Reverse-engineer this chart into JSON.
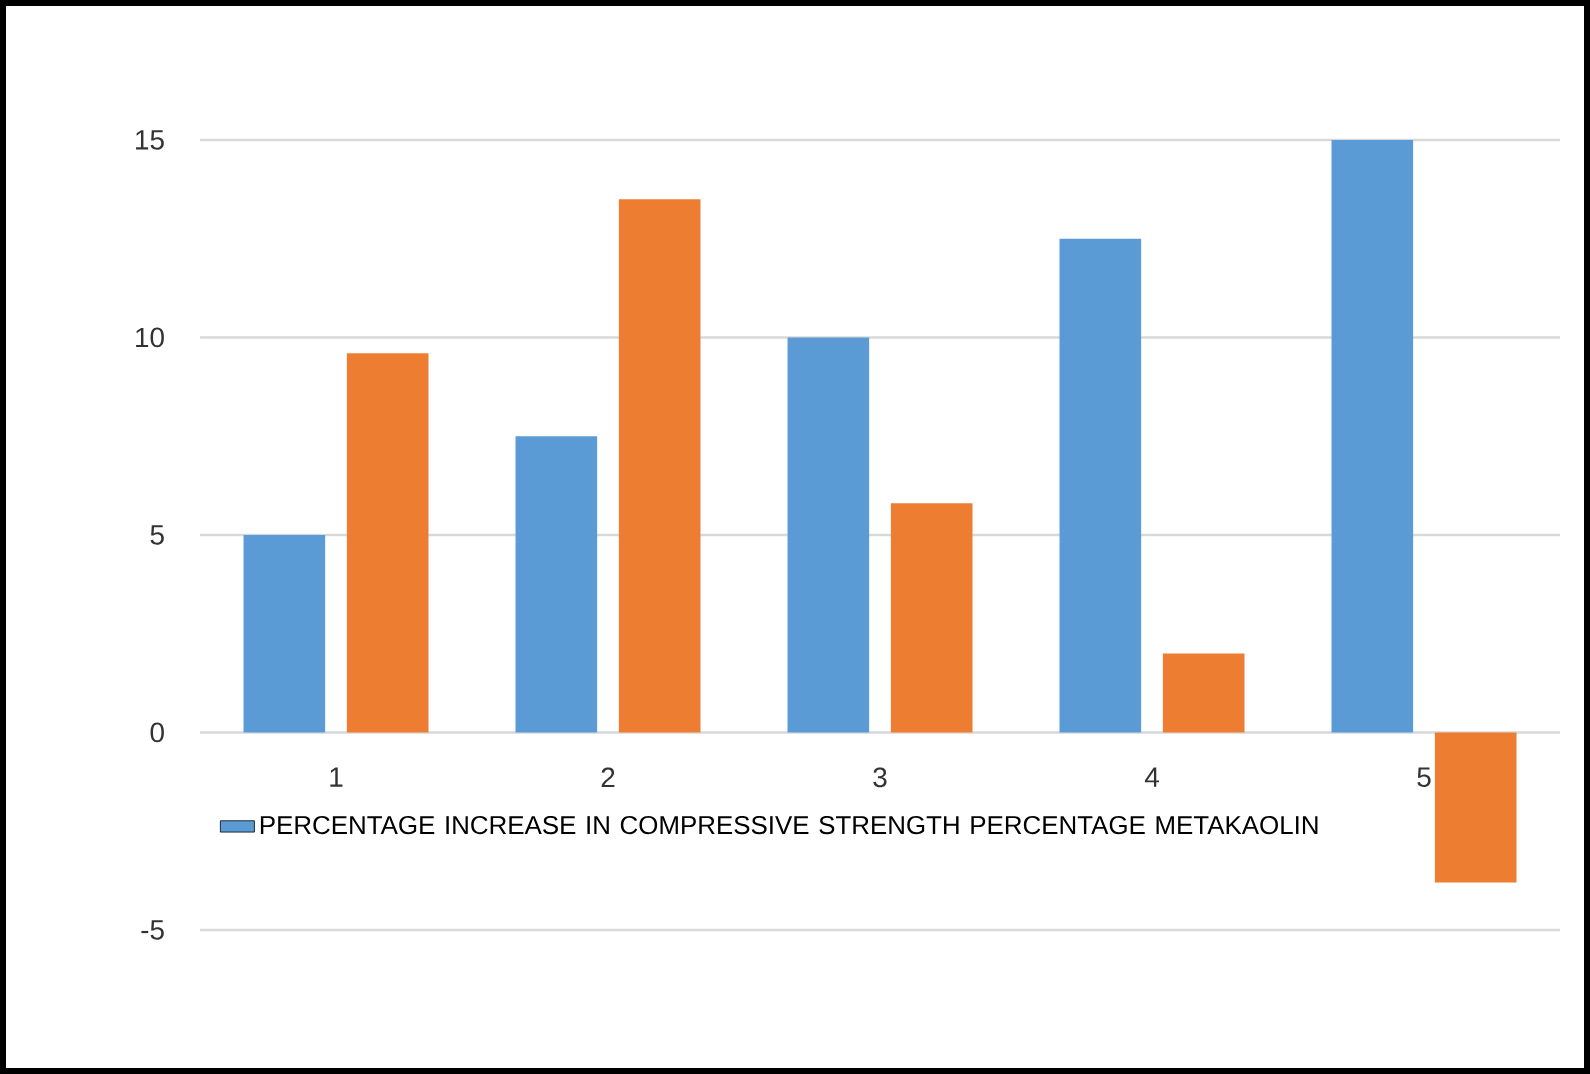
{
  "chart_data": {
    "type": "bar",
    "categories": [
      "1",
      "2",
      "3",
      "4",
      "5"
    ],
    "series": [
      {
        "name": "PERCENTAGE INCREASE IN COMPRESSIVE STRENGTH PERCENTAGE METAKAOLIN",
        "color": "#5b9bd5",
        "values": [
          5,
          7.5,
          10,
          12.5,
          15
        ]
      },
      {
        "color": "#ed7d31",
        "values": [
          9.6,
          13.5,
          5.8,
          2,
          -3.8
        ]
      }
    ],
    "ylim": [
      -5,
      15
    ],
    "yticks": [
      -5,
      0,
      5,
      10,
      15
    ],
    "grid": "y",
    "legend": "bottom"
  }
}
